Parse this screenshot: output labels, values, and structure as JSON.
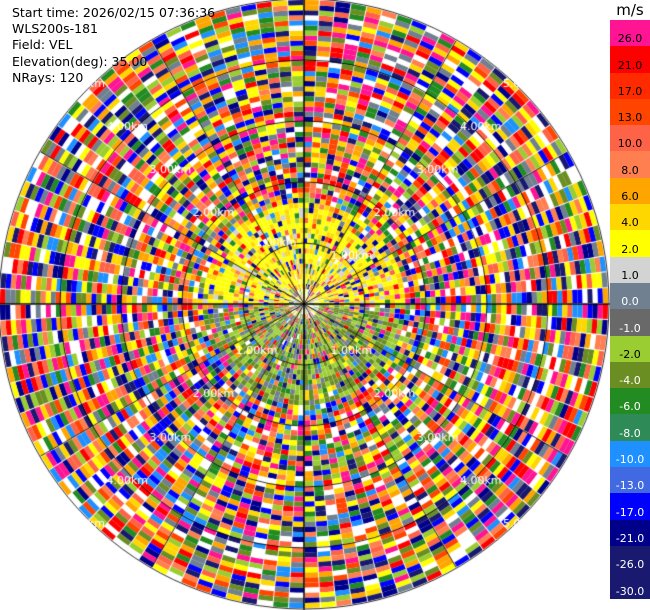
{
  "header": {
    "start_time": "Start time: 2026/02/15 07:36:36",
    "site": "WLS200s-181",
    "field": "Field: VEL",
    "elevation": "Elevation(deg): 35.00",
    "nrays": "NRays: 120"
  },
  "range_labels": [
    {
      "text": "1.00km",
      "ang": 115
    },
    {
      "text": "1.00km",
      "ang": 45
    },
    {
      "text": "1.00km",
      "ang": 225
    },
    {
      "text": "1.00km",
      "ang": 315
    },
    {
      "text": "2.00km",
      "ang": 135
    },
    {
      "text": "2.00km",
      "ang": 45
    },
    {
      "text": "2.00km",
      "ang": 225
    },
    {
      "text": "2.00km",
      "ang": 315
    },
    {
      "text": "3.00km",
      "ang": 135
    },
    {
      "text": "3.00km",
      "ang": 45
    },
    {
      "text": "3.00km",
      "ang": 225
    },
    {
      "text": "3.00km",
      "ang": 315
    },
    {
      "text": "4.00km",
      "ang": 135
    },
    {
      "text": "4.00km",
      "ang": 45
    },
    {
      "text": "4.00km",
      "ang": 225
    },
    {
      "text": "4.00km",
      "ang": 315
    },
    {
      "text": "5.00km",
      "ang": 135
    },
    {
      "text": "5.00km",
      "ang": 45
    },
    {
      "text": "5.00km",
      "ang": 225
    },
    {
      "text": "5.00km",
      "ang": 315
    }
  ],
  "colorbar": {
    "unit": "m/s",
    "levels": [
      {
        "label": "26.0",
        "color": "#ff1493"
      },
      {
        "label": "21.0",
        "color": "#ff0000"
      },
      {
        "label": "17.0",
        "color": "#ff2a00"
      },
      {
        "label": "13.0",
        "color": "#ff4500"
      },
      {
        "label": "10.0",
        "color": "#ff6347"
      },
      {
        "label": "8.0",
        "color": "#ff7f50"
      },
      {
        "label": "6.0",
        "color": "#ffa500"
      },
      {
        "label": "4.0",
        "color": "#ffd700"
      },
      {
        "label": "2.0",
        "color": "#ffff00"
      },
      {
        "label": "1.0",
        "color": "#d3d3d3"
      },
      {
        "label": "0.0",
        "color": "#708090"
      },
      {
        "label": "-1.0",
        "color": "#696969"
      },
      {
        "label": "-2.0",
        "color": "#9acd32"
      },
      {
        "label": "-4.0",
        "color": "#6b8e23"
      },
      {
        "label": "-6.0",
        "color": "#228b22"
      },
      {
        "label": "-8.0",
        "color": "#2e8b57"
      },
      {
        "label": "-10.0",
        "color": "#1e90ff"
      },
      {
        "label": "-13.0",
        "color": "#4169e1"
      },
      {
        "label": "-17.0",
        "color": "#0000ff"
      },
      {
        "label": "-21.0",
        "color": "#00008b"
      },
      {
        "label": "-26.0",
        "color": "#191970"
      },
      {
        "label": "-30.0",
        "color": "#191970"
      }
    ]
  }
}
